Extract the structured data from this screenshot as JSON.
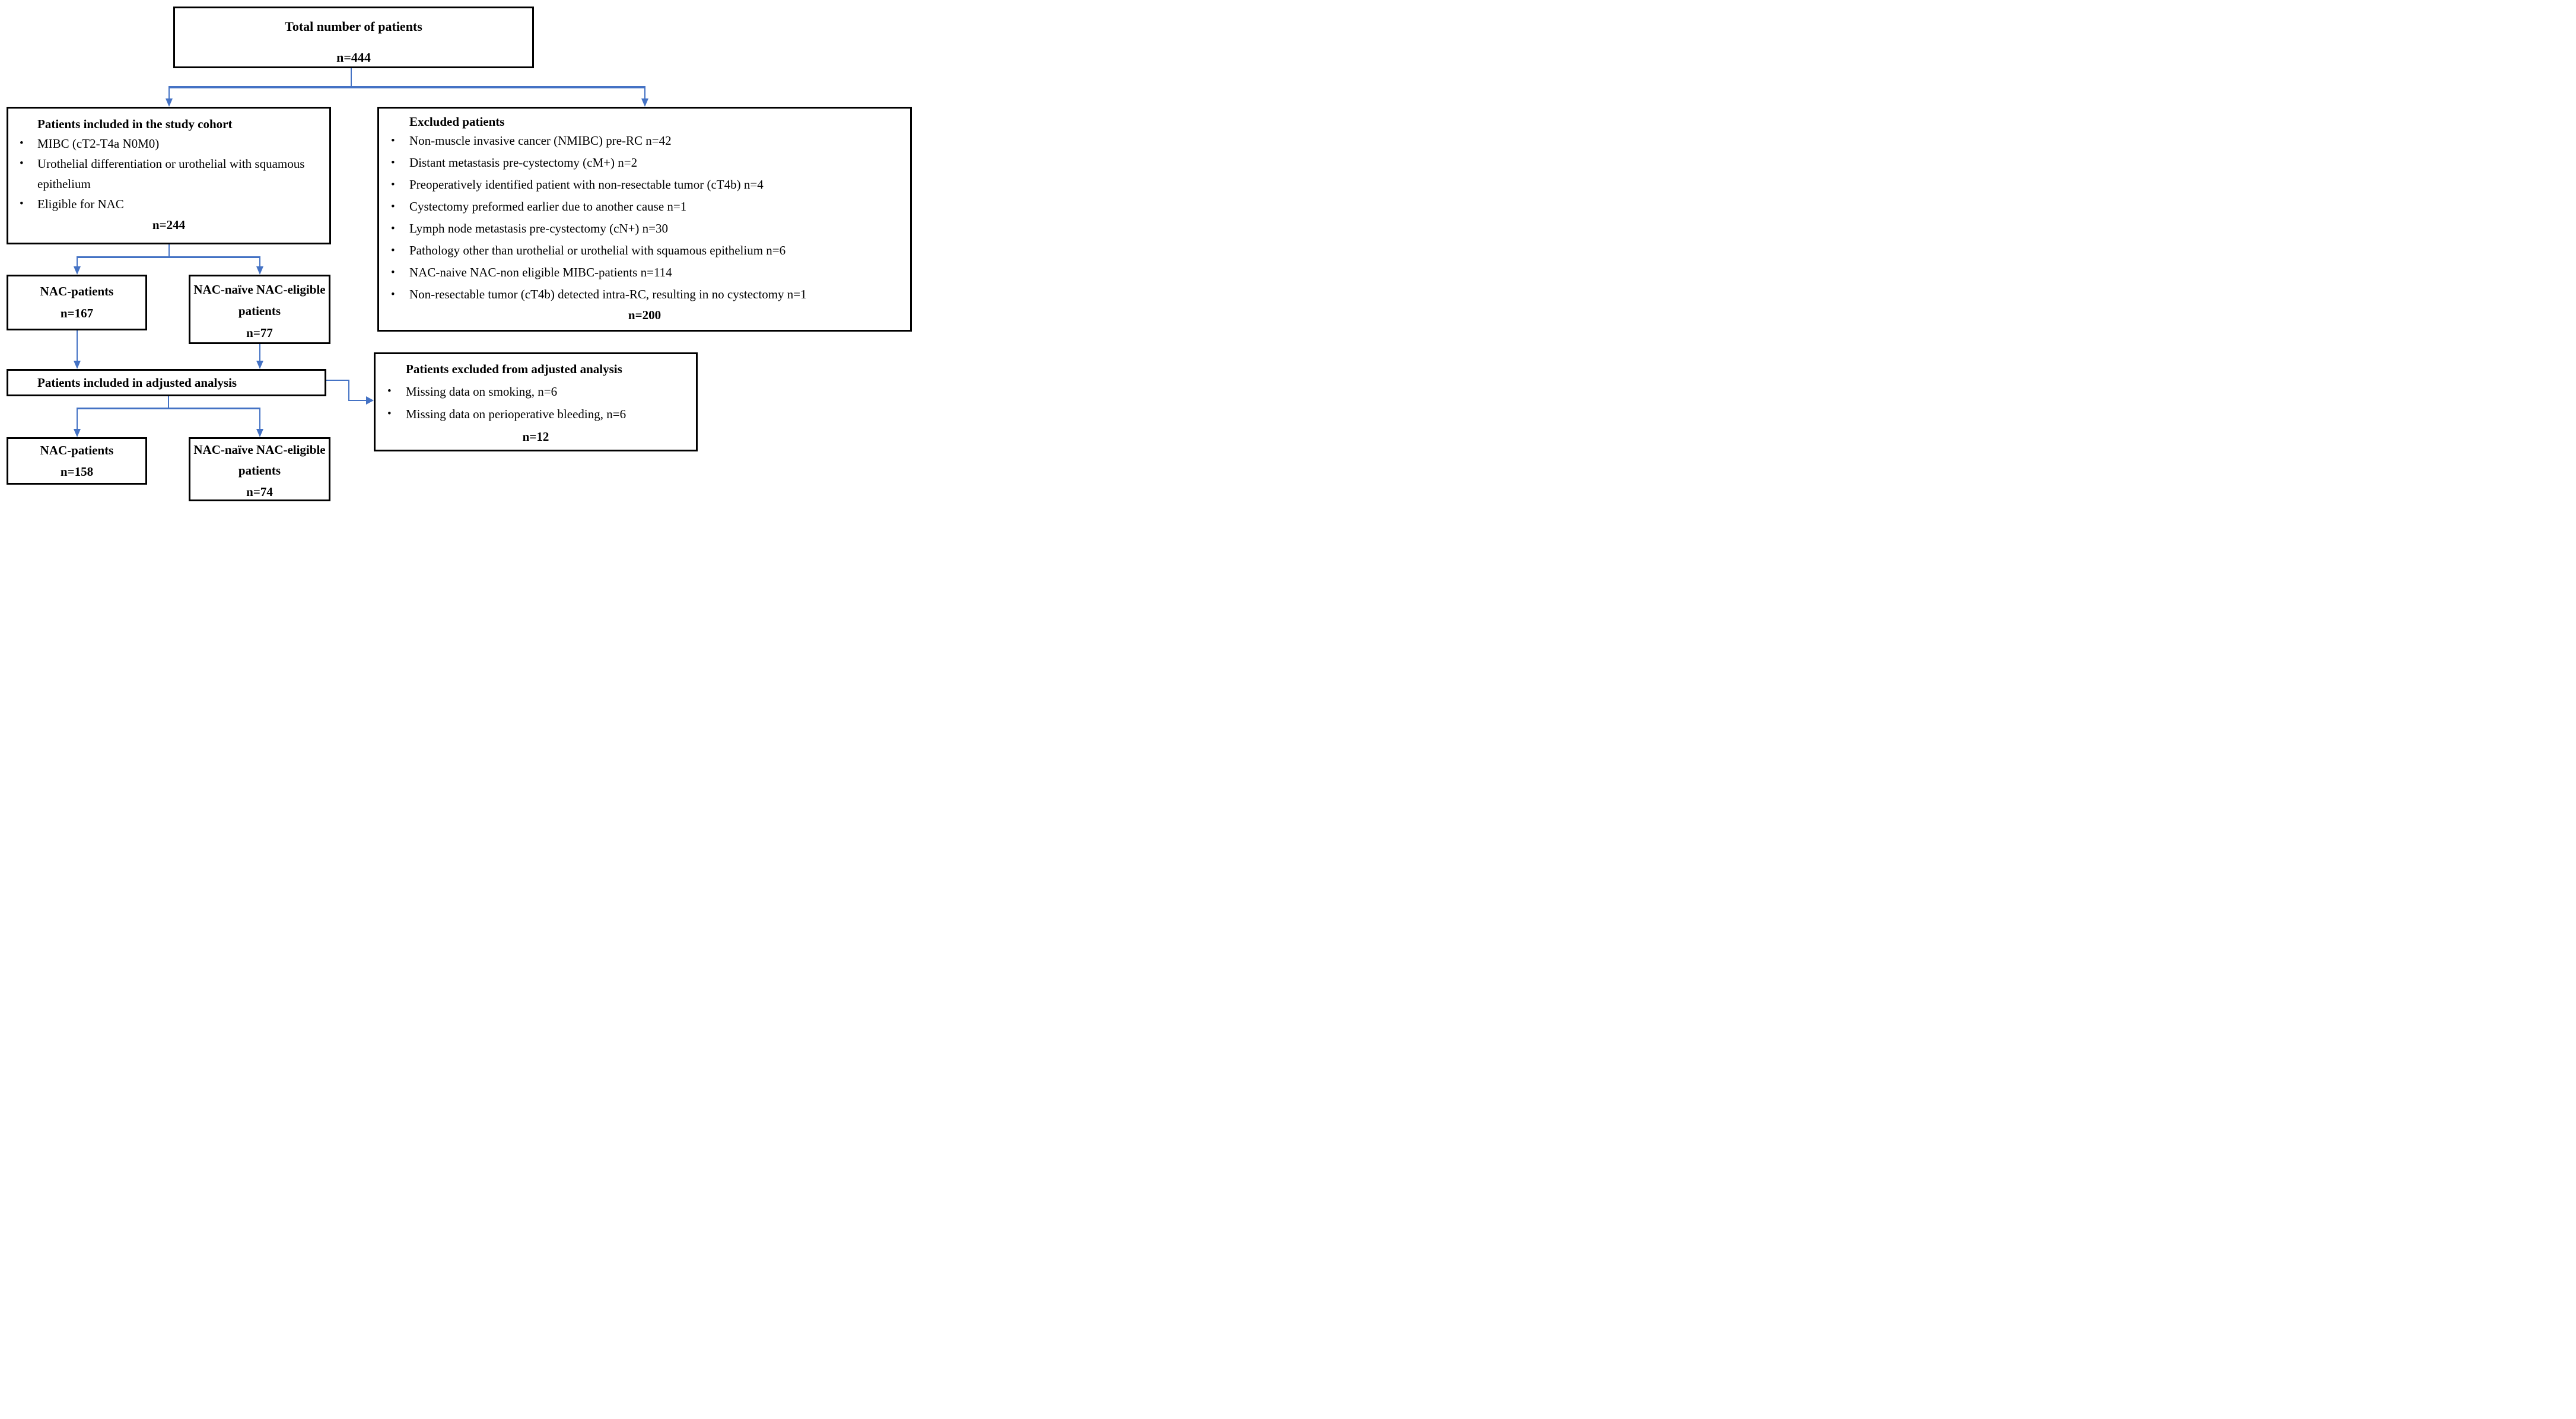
{
  "colors": {
    "arrow": "#4472C4",
    "border": "#000000",
    "background": "#ffffff"
  },
  "boxes": {
    "total": {
      "title": "Total number of patients",
      "count": "n=444"
    },
    "cohort": {
      "title": "Patients included in the study cohort",
      "bullets": [
        "MIBC (cT2-T4a N0M0)",
        "Urothelial differentiation or urothelial with squamous epithelium",
        "Eligible for NAC"
      ],
      "count": "n=244"
    },
    "excluded": {
      "title": "Excluded patients",
      "bullets": [
        "Non-muscle invasive cancer (NMIBC) pre-RC n=42",
        "Distant metastasis pre-cystectomy (cM+) n=2",
        "Preoperatively identified patient with non-resectable tumor (cT4b) n=4",
        "Cystectomy preformed earlier due to another cause n=1",
        "Lymph node metastasis pre-cystectomy (cN+) n=30",
        "Pathology other than urothelial or urothelial with squamous epithelium n=6",
        "NAC-naive NAC-non eligible MIBC-patients n=114",
        "Non-resectable tumor (cT4b) detected intra-RC, resulting in no cystectomy n=1"
      ],
      "count": "n=200"
    },
    "nac_mid": {
      "title": "NAC-patients",
      "count": "n=167"
    },
    "naive_mid": {
      "title": "NAC-naïve NAC-eligible patients",
      "count": "n=77"
    },
    "adjusted": {
      "title": "Patients included in adjusted analysis"
    },
    "excluded_adjusted": {
      "title": "Patients excluded from adjusted analysis",
      "bullets": [
        "Missing data on smoking, n=6",
        "Missing data on perioperative bleeding, n=6"
      ],
      "count": "n=12"
    },
    "nac_bottom": {
      "title": "NAC-patients",
      "count": "n=158"
    },
    "naive_bottom": {
      "title": "NAC-naïve NAC-eligible patients",
      "count": "n=74"
    }
  }
}
